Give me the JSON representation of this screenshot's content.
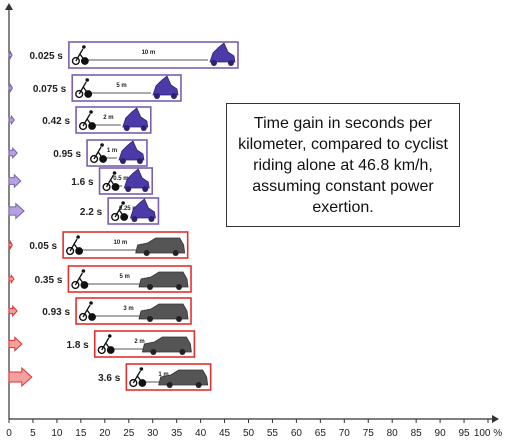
{
  "chart_data": {
    "type": "bar",
    "annotation": "Time gain in seconds per kilometer, compared to cyclist riding alone at 46.8 km/h, assuming constant power exertion.",
    "x_ticks": [
      "0",
      "5",
      "10",
      "15",
      "20",
      "25",
      "30",
      "35",
      "40",
      "45",
      "50",
      "55",
      "60",
      "65",
      "70",
      "75",
      "80",
      "85",
      "90",
      "95",
      "100 %"
    ],
    "xlim": [
      0,
      100
    ],
    "series": [
      {
        "vehicle": "motorcycle",
        "color": "#7a5fb0",
        "items": [
          {
            "label": "0.025 s",
            "distance": "10 m",
            "value": 0.025,
            "start": 12.5,
            "end": 47.8
          },
          {
            "label": "0.075 s",
            "distance": "5 m",
            "value": 0.075,
            "start": 13.2,
            "end": 35.9
          },
          {
            "label": "0.42 s",
            "distance": "2 m",
            "value": 0.42,
            "start": 14.0,
            "end": 29.6
          },
          {
            "label": "0.95 s",
            "distance": "1 m",
            "value": 0.95,
            "start": 16.3,
            "end": 28.8
          },
          {
            "label": "1.6 s",
            "distance": "0.5 m",
            "value": 1.6,
            "start": 18.9,
            "end": 29.9
          },
          {
            "label": "2.2 s",
            "distance": "0.25 m",
            "value": 2.2,
            "start": 20.7,
            "end": 31.2
          }
        ]
      },
      {
        "vehicle": "car",
        "color": "#e23030",
        "items": [
          {
            "label": "0.05 s",
            "distance": "10 m",
            "value": 0.05,
            "start": 11.3,
            "end": 37.3
          },
          {
            "label": "0.35 s",
            "distance": "5 m",
            "value": 0.35,
            "start": 12.4,
            "end": 38.0
          },
          {
            "label": "0.93 s",
            "distance": "3 m",
            "value": 0.93,
            "start": 14.0,
            "end": 38.0
          },
          {
            "label": "1.8 s",
            "distance": "2 m",
            "value": 1.8,
            "start": 17.9,
            "end": 38.7
          },
          {
            "label": "3.6 s",
            "distance": "1 m",
            "value": 3.6,
            "start": 24.5,
            "end": 42.1
          }
        ]
      }
    ]
  }
}
